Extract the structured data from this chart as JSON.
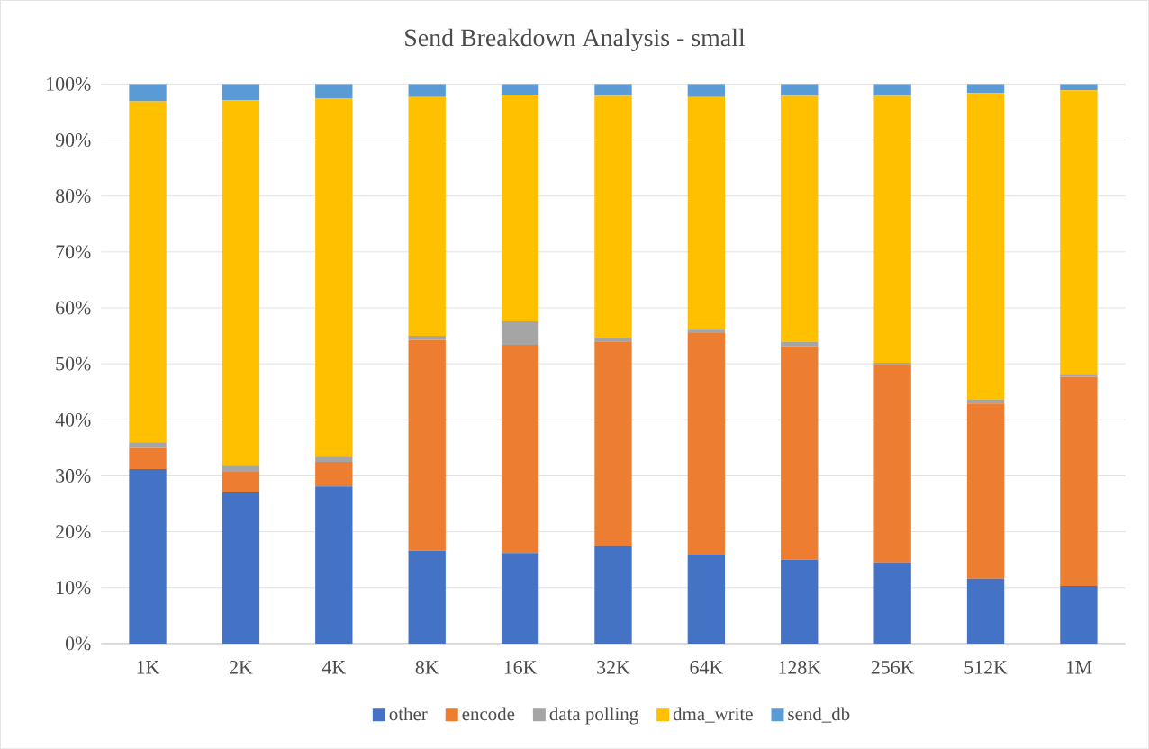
{
  "chart_data": {
    "type": "bar",
    "title": "Send Breakdown Analysis - small",
    "stacked": true,
    "categories": [
      "1K",
      "2K",
      "4K",
      "8K",
      "16K",
      "32K",
      "64K",
      "128K",
      "256K",
      "512K",
      "1M"
    ],
    "series": [
      {
        "name": "other",
        "color": "#4472c4",
        "values": [
          31.2,
          27.0,
          28.1,
          16.6,
          16.2,
          17.4,
          15.9,
          15.0,
          14.5,
          11.6,
          10.3
        ]
      },
      {
        "name": "encode",
        "color": "#ed7d31",
        "values": [
          3.8,
          3.7,
          4.4,
          37.7,
          37.2,
          36.6,
          39.6,
          38.1,
          35.3,
          31.3,
          37.4
        ]
      },
      {
        "name": "data polling",
        "color": "#a5a5a5",
        "values": [
          1.0,
          1.1,
          0.9,
          0.7,
          4.2,
          0.7,
          0.6,
          0.8,
          0.4,
          0.7,
          0.5
        ]
      },
      {
        "name": "dma_write",
        "color": "#ffc000",
        "values": [
          60.9,
          65.3,
          64.0,
          42.7,
          40.5,
          43.2,
          41.6,
          44.0,
          47.7,
          54.8,
          50.7
        ]
      },
      {
        "name": "send_db",
        "color": "#5b9bd5",
        "values": [
          3.1,
          2.9,
          2.6,
          2.3,
          1.9,
          2.1,
          2.3,
          2.1,
          2.1,
          1.6,
          1.1
        ]
      }
    ],
    "ylim": [
      0,
      100
    ],
    "yticks": [
      {
        "value": 0,
        "label": "0%"
      },
      {
        "value": 10,
        "label": "10%"
      },
      {
        "value": 20,
        "label": "20%"
      },
      {
        "value": 30,
        "label": "30%"
      },
      {
        "value": 40,
        "label": "40%"
      },
      {
        "value": 50,
        "label": "50%"
      },
      {
        "value": 60,
        "label": "60%"
      },
      {
        "value": 70,
        "label": "70%"
      },
      {
        "value": 80,
        "label": "80%"
      },
      {
        "value": 90,
        "label": "90%"
      },
      {
        "value": 100,
        "label": "100%"
      }
    ],
    "grid": "y",
    "legend": "bottom"
  }
}
